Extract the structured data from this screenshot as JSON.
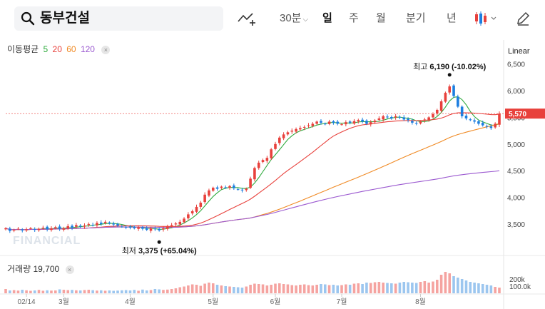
{
  "search": {
    "value": "동부건설"
  },
  "periods": [
    {
      "label": "30분",
      "dropdown": true,
      "active": false
    },
    {
      "label": "일",
      "dropdown": false,
      "active": true
    },
    {
      "label": "주",
      "dropdown": false,
      "active": false
    },
    {
      "label": "월",
      "dropdown": false,
      "active": false
    },
    {
      "label": "분기",
      "dropdown": false,
      "active": false
    },
    {
      "label": "년",
      "dropdown": false,
      "active": false
    }
  ],
  "icons": {
    "search": "search-icon",
    "draw": "trendline-draw-icon",
    "candle": "candlestick-type-icon",
    "pencil": "pencil-icon",
    "close": "close-icon"
  },
  "indicator": {
    "label": "이동평균",
    "periods": [
      {
        "n": "5",
        "color": "#2eaa3c"
      },
      {
        "n": "20",
        "color": "#e8413c"
      },
      {
        "n": "60",
        "color": "#f08a24"
      },
      {
        "n": "120",
        "color": "#9b59d0"
      }
    ],
    "close": "×"
  },
  "scale_type": "Linear",
  "volume": {
    "label": "거래량",
    "value": "19,700",
    "close": "×",
    "axis_labels": [
      "200k",
      "100.0k"
    ]
  },
  "watermark": "FINANCIAL",
  "colors": {
    "up": "#e8413c",
    "down": "#1c7ee0",
    "price_tag": "#e8413c"
  },
  "chart_data": {
    "type": "candlestick",
    "ylim": [
      3150,
      6550
    ],
    "y_ticks": [
      3500,
      4000,
      4500,
      5000,
      5500,
      6000,
      6500
    ],
    "y_tick_labels": [
      "3,500",
      "4,000",
      "4,500",
      "5,000",
      "5,500",
      "6,000",
      "6,500"
    ],
    "x_ticks": [
      {
        "label": "02/14",
        "index": 5
      },
      {
        "label": "3월",
        "index": 14
      },
      {
        "label": "4월",
        "index": 30
      },
      {
        "label": "5월",
        "index": 50
      },
      {
        "label": "6월",
        "index": 65
      },
      {
        "label": "7월",
        "index": 81
      },
      {
        "label": "8월",
        "index": 100
      }
    ],
    "current_price": {
      "value": 5570,
      "label": "5,570"
    },
    "annotations": {
      "high": {
        "label": "최고",
        "value": "6,190",
        "change": "(-10.02%)",
        "index": 107,
        "price": 6190
      },
      "low": {
        "label": "최저",
        "value": "3,375",
        "change": "(+65.04%)",
        "index": 37,
        "price": 3375
      }
    },
    "close": [
      3420,
      3370,
      3390,
      3410,
      3380,
      3400,
      3420,
      3390,
      3410,
      3430,
      3400,
      3420,
      3440,
      3410,
      3420,
      3460,
      3430,
      3480,
      3450,
      3470,
      3500,
      3480,
      3520,
      3500,
      3540,
      3510,
      3490,
      3470,
      3450,
      3440,
      3430,
      3420,
      3440,
      3410,
      3390,
      3420,
      3400,
      3380,
      3420,
      3460,
      3480,
      3510,
      3540,
      3600,
      3680,
      3740,
      3820,
      3900,
      4050,
      4130,
      4180,
      4160,
      4200,
      4180,
      4210,
      4170,
      4150,
      4130,
      4160,
      4350,
      4550,
      4650,
      4700,
      4740,
      4900,
      5000,
      5120,
      5180,
      5220,
      5250,
      5280,
      5300,
      5320,
      5350,
      5380,
      5420,
      5400,
      5380,
      5420,
      5400,
      5380,
      5370,
      5410,
      5400,
      5430,
      5450,
      5420,
      5380,
      5410,
      5440,
      5480,
      5520,
      5500,
      5480,
      5520,
      5500,
      5460,
      5450,
      5400,
      5380,
      5420,
      5460,
      5500,
      5560,
      5640,
      5800,
      5960,
      6080,
      5900,
      5700,
      5520,
      5480,
      5450,
      5420,
      5380,
      5350,
      5330,
      5300,
      5380,
      5570
    ],
    "volume": [
      60,
      40,
      45,
      38,
      50,
      42,
      35,
      40,
      48,
      36,
      42,
      38,
      40,
      55,
      50,
      45,
      48,
      42,
      40,
      46,
      50,
      44,
      38,
      42,
      36,
      40,
      35,
      38,
      42,
      45,
      40,
      48,
      36,
      52,
      40,
      46,
      60,
      55,
      48,
      52,
      60,
      70,
      85,
      95,
      110,
      125,
      120,
      105,
      135,
      150,
      140,
      120,
      110,
      100,
      95,
      90,
      85,
      80,
      95,
      120,
      135,
      130,
      125,
      110,
      120,
      135,
      140,
      130,
      125,
      115,
      110,
      120,
      125,
      115,
      110,
      120,
      130,
      125,
      115,
      120,
      110,
      115,
      125,
      120,
      135,
      140,
      130,
      150,
      145,
      155,
      160,
      150,
      145,
      140,
      135,
      150,
      160,
      155,
      150,
      145,
      160,
      170,
      150,
      165,
      190,
      260,
      300,
      280,
      240,
      220,
      200,
      180,
      160,
      150,
      140,
      130,
      120,
      110,
      90,
      80
    ]
  }
}
